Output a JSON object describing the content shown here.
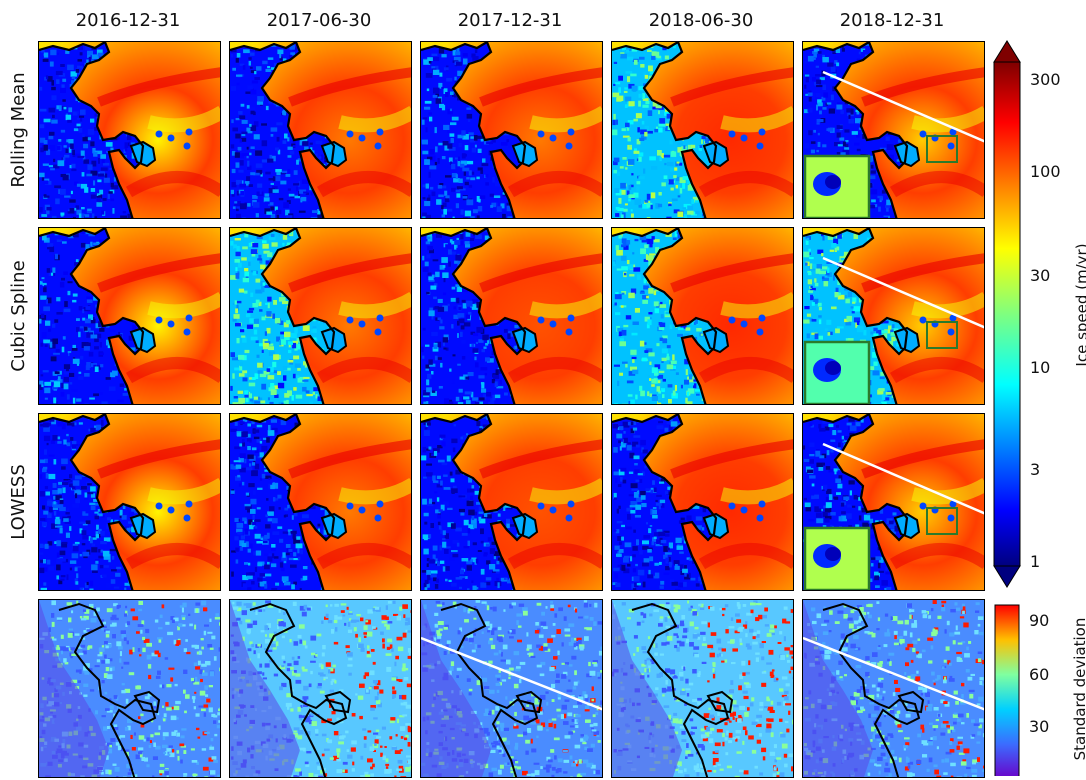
{
  "columns": [
    "2016-12-31",
    "2017-06-30",
    "2017-12-31",
    "2018-06-30",
    "2018-12-31"
  ],
  "rows": [
    "Rolling Mean",
    "Cubic Spline",
    "LOWESS",
    ""
  ],
  "row_panel_style": [
    {
      "noise": [
        0.5,
        0.55,
        0.5,
        0.35,
        0.5
      ],
      "fast": [
        0.55,
        0.7,
        0.7,
        0.8,
        0.6
      ],
      "inset": true,
      "stripe": [
        false,
        false,
        false,
        false,
        true
      ]
    },
    {
      "noise": [
        0.5,
        0.3,
        0.5,
        0.35,
        0.35
      ],
      "fast": [
        0.55,
        0.7,
        0.75,
        0.8,
        0.6
      ],
      "inset": true,
      "stripe": [
        false,
        false,
        false,
        false,
        true
      ]
    },
    {
      "noise": [
        0.55,
        0.55,
        0.55,
        0.5,
        0.55
      ],
      "fast": [
        0.55,
        0.7,
        0.75,
        0.8,
        0.6
      ],
      "inset": true,
      "stripe": [
        false,
        false,
        false,
        false,
        true
      ]
    },
    {
      "stdv": [
        0.25,
        0.55,
        0.2,
        0.6,
        0.35
      ],
      "stripe": [
        false,
        false,
        true,
        false,
        true
      ]
    }
  ],
  "colorbar_speed": {
    "label": "Ice speed (m/yr)",
    "ticks": [
      "300",
      "100",
      "30",
      "10",
      "3",
      "1"
    ],
    "scale": "log",
    "range": [
      1,
      300
    ],
    "extend": "both",
    "colormap": "jet"
  },
  "colorbar_std": {
    "label": "Standard deviation",
    "ticks": [
      "90",
      "60",
      "30"
    ],
    "range": [
      0,
      100
    ],
    "colormap": "jet"
  }
}
